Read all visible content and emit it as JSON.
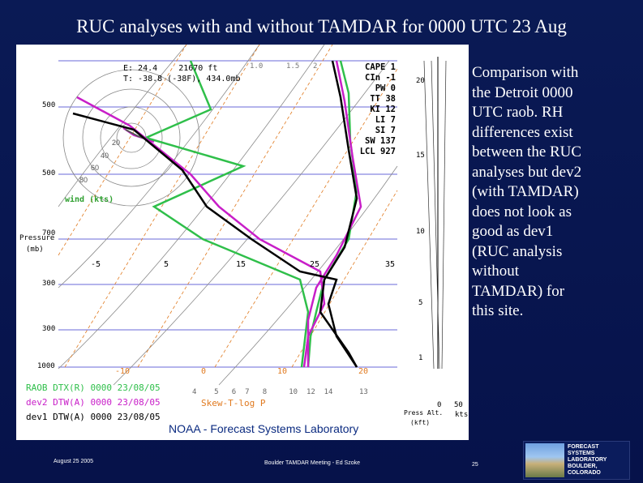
{
  "title": "RUC analyses with and without TAMDAR for 0000 UTC 23 Aug",
  "description_text": "Comparison with the Detroit 0000 UTC raob. RH differences exist between the RUC analyses but dev2 (with TAMDAR) does not look as good as dev1 (RUC analysis without TAMDAR) for this site.",
  "description_lines": [
    "Comparison with",
    "the Detroit 0000",
    "UTC raob.  RH",
    "differences exist",
    "between the RUC",
    "analyses but dev2",
    "(with TAMDAR)",
    "does not look as",
    "good as dev1",
    "(RUC analysis",
    "without",
    "TAMDAR) for",
    "this site."
  ],
  "skewt": {
    "cursor_e": "E: 24.4",
    "cursor_e_ft": "21670 ft",
    "cursor_t": "T: -38.8 (-38F), 434.0mb",
    "pressure_label": "Pressure",
    "pressure_unit": "(mb)",
    "pressure_ticks": [
      "500",
      "500",
      "700",
      "300",
      "300",
      "1000"
    ],
    "temp_ticks_upper": [
      "-5",
      "5",
      "15",
      "25",
      "35"
    ],
    "temp_ticks_lower": [
      "-10",
      "0",
      "10",
      "20"
    ],
    "mixing_ratios": [
      "1.0",
      "1.5",
      "2"
    ],
    "mixing_ratios_lower": [
      "4",
      "5",
      "6",
      "7",
      "8",
      "10",
      "12",
      "14",
      "13"
    ],
    "wind_label": "wind (kts)",
    "hodo_rings": [
      "20",
      "40",
      "60",
      "80"
    ],
    "indices": [
      {
        "label": "CAPE",
        "value": "1"
      },
      {
        "label": "CIn",
        "value": "-1"
      },
      {
        "label": "PW",
        "value": "0"
      },
      {
        "label": "TT",
        "value": "38"
      },
      {
        "label": "KI",
        "value": "12"
      },
      {
        "label": "LI",
        "value": "7"
      },
      {
        "label": "SI",
        "value": "7"
      },
      {
        "label": "SW",
        "value": "137"
      },
      {
        "label": "LCL",
        "value": "927"
      }
    ],
    "height_ticks": [
      "20",
      "15",
      "10",
      "5",
      "1",
      "0"
    ],
    "height_axis_label": "Press Alt.",
    "height_axis_unit": "(kft)",
    "wind_axis": [
      "0",
      "50"
    ],
    "wind_axis_unit": "kts",
    "chart_type": "Skew-T-log P",
    "legend": [
      {
        "text": "RAOB DTX(R) 0000 23/08/05",
        "color": "#2fbf4a"
      },
      {
        "text": "dev2 DTW(A) 0000 23/08/05",
        "color": "#c81ec8"
      },
      {
        "text": "dev1 DTW(A) 0000 23/08/05",
        "color": "#000000"
      }
    ],
    "credit": "NOAA - Forecast Systems Laboratory"
  },
  "footer": {
    "date": "August 25 2005",
    "meeting": "Boulder TAMDAR Meeting - Ed Szoke",
    "page": "25"
  },
  "logo": {
    "lines": [
      "FORECAST",
      "SYSTEMS",
      "LABORATORY",
      "BOULDER, COLORADO"
    ]
  },
  "colors": {
    "background": "#081650",
    "raob": "#2fbf4a",
    "dev2": "#c81ec8",
    "dev1": "#000000",
    "grid_blue": "#6a6ad8",
    "isotherm_orange": "#e07a20"
  }
}
